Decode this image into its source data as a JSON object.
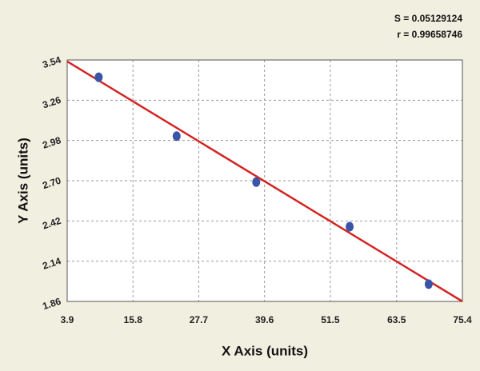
{
  "chart_data": {
    "type": "scatter",
    "annotations": [
      "S = 0.05129124",
      "r = 0.99658746"
    ],
    "x_label": "X Axis (units)",
    "y_label": "Y Axis (units)",
    "x": [
      9.6,
      23.7,
      38.1,
      55.0,
      69.3
    ],
    "values": [
      3.42,
      3.01,
      2.69,
      2.38,
      1.98
    ],
    "color": "#3a55a8",
    "fit_line": {
      "x": [
        3.9,
        75.4
      ],
      "y": [
        3.53,
        1.86
      ],
      "color": "#d42424"
    },
    "xlim": [
      3.9,
      75.4
    ],
    "xticks": [
      3.9,
      15.8,
      27.7,
      39.6,
      51.5,
      63.5,
      75.4
    ],
    "ylim": [
      1.86,
      3.54
    ],
    "yticks": [
      1.86,
      2.14,
      2.42,
      {
        "value": 2.7,
        "label": "2.70"
      },
      2.98,
      3.26,
      3.54
    ],
    "grid": true
  }
}
